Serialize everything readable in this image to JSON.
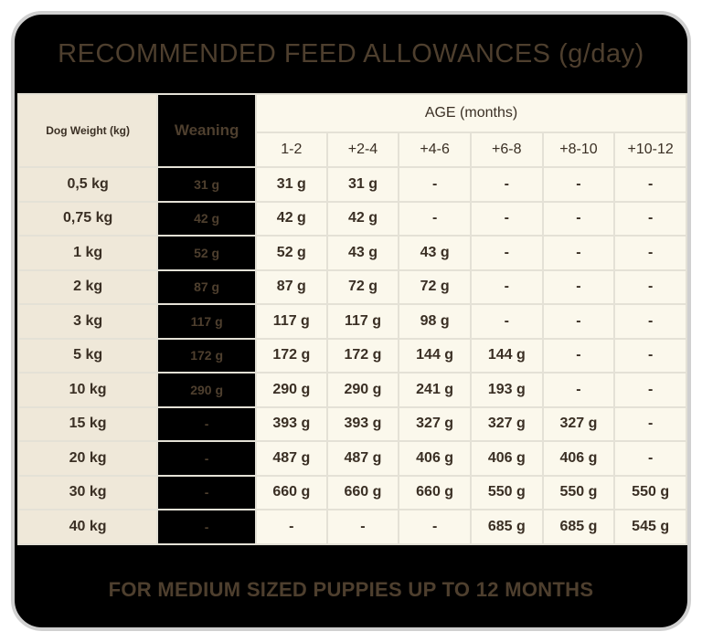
{
  "title": "RECOMMENDED FEED ALLOWANCES (g/day)",
  "footer": "FOR MEDIUM SIZED PUPPIES UP TO 12 MONTHS",
  "header": {
    "dog_weight": "Dog Weight (kg)",
    "weaning": "Weaning",
    "age": "AGE (months)",
    "age_groups": [
      "1-2",
      "+2-4",
      "+4-6",
      "+6-8",
      "+8-10",
      "+10-12"
    ]
  },
  "rows": [
    {
      "weight": "0,5 kg",
      "weaning": "31 g",
      "values": [
        "31 g",
        "31 g",
        "-",
        "-",
        "-",
        "-"
      ]
    },
    {
      "weight": "0,75 kg",
      "weaning": "42 g",
      "values": [
        "42 g",
        "42 g",
        "-",
        "-",
        "-",
        "-"
      ]
    },
    {
      "weight": "1 kg",
      "weaning": "52 g",
      "values": [
        "52 g",
        "43 g",
        "43 g",
        "-",
        "-",
        "-"
      ]
    },
    {
      "weight": "2 kg",
      "weaning": "87 g",
      "values": [
        "87 g",
        "72 g",
        "72 g",
        "-",
        "-",
        "-"
      ]
    },
    {
      "weight": "3 kg",
      "weaning": "117 g",
      "values": [
        "117 g",
        "117 g",
        "98 g",
        "-",
        "-",
        "-"
      ]
    },
    {
      "weight": "5 kg",
      "weaning": "172 g",
      "values": [
        "172 g",
        "172 g",
        "144 g",
        "144 g",
        "-",
        "-"
      ]
    },
    {
      "weight": "10 kg",
      "weaning": "290 g",
      "values": [
        "290 g",
        "290 g",
        "241 g",
        "193 g",
        "-",
        "-"
      ]
    },
    {
      "weight": "15 kg",
      "weaning": "-",
      "values": [
        "393 g",
        "393 g",
        "327 g",
        "327 g",
        "327 g",
        "-"
      ]
    },
    {
      "weight": "20 kg",
      "weaning": "-",
      "values": [
        "487 g",
        "487 g",
        "406 g",
        "406 g",
        "406 g",
        "-"
      ]
    },
    {
      "weight": "30 kg",
      "weaning": "-",
      "values": [
        "660 g",
        "660 g",
        "660 g",
        "550 g",
        "550 g",
        "550 g"
      ]
    },
    {
      "weight": "40 kg",
      "weaning": "-",
      "values": [
        "-",
        "-",
        "-",
        "685 g",
        "685 g",
        "545 g"
      ]
    }
  ],
  "colors": {
    "frame": "#000000",
    "border": "#d0d0d0",
    "weight_cell": "#efe8d9",
    "value_cell": "#fbf8ec",
    "text": "#4e3f2e"
  }
}
